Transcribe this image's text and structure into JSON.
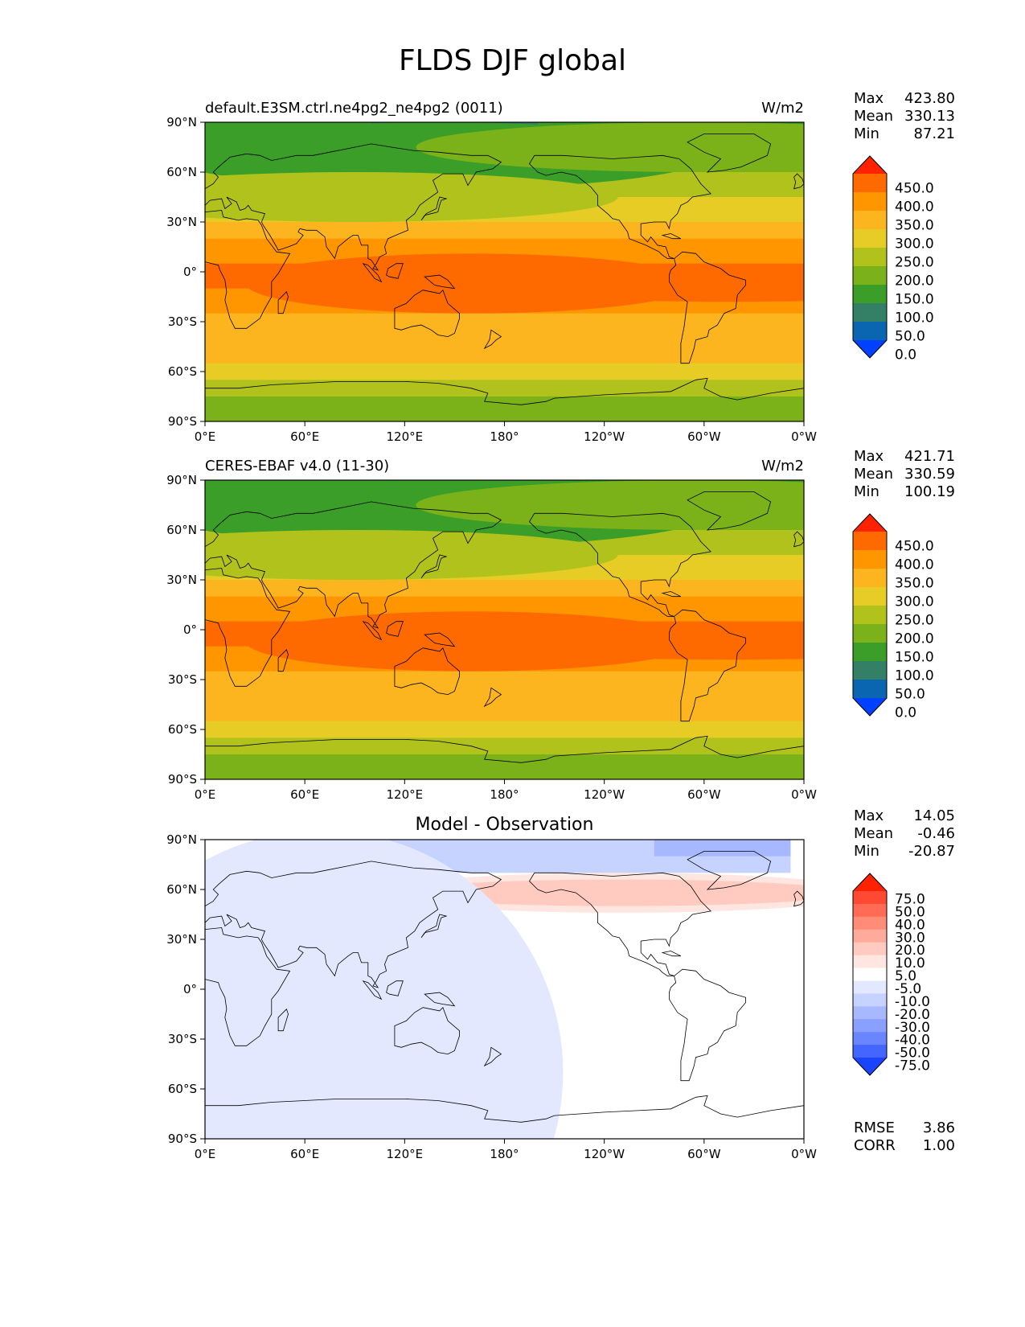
{
  "title": "FLDS DJF global",
  "lat_ticks": [
    "90°N",
    "60°N",
    "30°N",
    "0°",
    "30°S",
    "60°S",
    "90°S"
  ],
  "lon_ticks": [
    "0°E",
    "60°E",
    "120°E",
    "180°",
    "120°W",
    "60°W",
    "0°W"
  ],
  "stat_labels": {
    "max": "Max",
    "mean": "Mean",
    "min": "Min",
    "rmse": "RMSE",
    "corr": "CORR"
  },
  "panels": [
    {
      "id": "test",
      "left_title": "default.E3SM.ctrl.ne4pg2_ne4pg2 (0011)",
      "center_title": "",
      "units": "W/m2",
      "stats": {
        "max": "423.80",
        "mean": "330.13",
        "min": "87.21"
      },
      "colorbar": {
        "labels": [
          "450.0",
          "400.0",
          "350.0",
          "300.0",
          "250.0",
          "200.0",
          "150.0",
          "100.0",
          "50.0",
          "0.0"
        ],
        "colors": [
          "#ff2200",
          "#ff6a00",
          "#ff9600",
          "#fcb51f",
          "#e6cc24",
          "#b1c21d",
          "#7bb219",
          "#3a9e28",
          "#338066",
          "#0a66b0",
          "#0040ff"
        ]
      }
    },
    {
      "id": "ref",
      "left_title": "CERES-EBAF v4.0 (11-30)",
      "center_title": "",
      "units": "W/m2",
      "stats": {
        "max": "421.71",
        "mean": "330.59",
        "min": "100.19"
      },
      "colorbar": {
        "labels": [
          "450.0",
          "400.0",
          "350.0",
          "300.0",
          "250.0",
          "200.0",
          "150.0",
          "100.0",
          "50.0",
          "0.0"
        ],
        "colors": [
          "#ff2200",
          "#ff6a00",
          "#ff9600",
          "#fcb51f",
          "#e6cc24",
          "#b1c21d",
          "#7bb219",
          "#3a9e28",
          "#338066",
          "#0a66b0",
          "#0040ff"
        ]
      }
    },
    {
      "id": "diff",
      "left_title": "",
      "center_title": "Model - Observation",
      "units": "",
      "stats": {
        "max": "14.05",
        "mean": "-0.46",
        "min": "-20.87",
        "rmse": "3.86",
        "corr": "1.00"
      },
      "colorbar": {
        "labels": [
          "75.0",
          "50.0",
          "40.0",
          "30.0",
          "20.0",
          "10.0",
          "5.0",
          "-5.0",
          "-10.0",
          "-20.0",
          "-30.0",
          "-40.0",
          "-50.0",
          "-75.0"
        ],
        "colors": [
          "#ff2200",
          "#ff4a33",
          "#ff6b55",
          "#ff8c77",
          "#ffab9b",
          "#ffcbc0",
          "#ffe6e0",
          "#ffffff",
          "#e3e8ff",
          "#c6d2ff",
          "#a8b8ff",
          "#8aa0ff",
          "#6a86ff",
          "#4466ff",
          "#1a44ff"
        ]
      }
    }
  ]
}
